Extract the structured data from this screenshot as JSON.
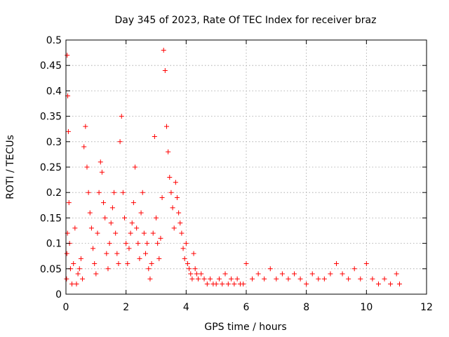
{
  "chart_data": {
    "type": "scatter",
    "title": "Day 345 of 2023, Rate Of TEC Index for receiver braz",
    "xlabel": "GPS time / hours",
    "ylabel": "ROTI / TECUs",
    "xlim": [
      0,
      12
    ],
    "ylim": [
      0,
      0.5
    ],
    "xticks": [
      0,
      2,
      4,
      6,
      8,
      10,
      12
    ],
    "yticks": [
      0,
      0.05,
      0.1,
      0.15,
      0.2,
      0.25,
      0.3,
      0.35,
      0.4,
      0.45,
      0.5
    ],
    "grid": true,
    "marker": "plus",
    "color": "#ff0000",
    "series": [
      {
        "x": [
          0.02,
          0.04,
          0.06,
          0.08,
          0.1,
          0.05,
          0.03,
          0.12,
          0.15,
          0.2,
          0.25,
          0.3,
          0.35,
          0.4,
          0.45,
          0.5,
          0.55,
          0.6,
          0.65,
          0.7,
          0.75,
          0.8,
          0.85,
          0.9,
          0.95,
          1.0,
          1.05,
          1.1,
          1.15,
          1.2,
          1.25,
          1.3,
          1.35,
          1.4,
          1.45,
          1.5,
          1.55,
          1.6,
          1.65,
          1.7,
          1.75,
          1.8,
          1.85,
          1.9,
          1.95,
          2.0,
          2.05,
          2.1,
          2.15,
          2.2,
          2.25,
          2.3,
          2.35,
          2.4,
          2.45,
          2.5,
          2.55,
          2.6,
          2.65,
          2.7,
          2.75,
          2.8,
          2.85,
          2.9,
          2.95,
          3.0,
          3.05,
          3.1,
          3.15,
          3.2,
          3.25,
          3.3,
          3.35,
          3.4,
          3.45,
          3.5,
          3.55,
          3.6,
          3.65,
          3.7,
          3.75,
          3.8,
          3.85,
          3.9,
          3.95,
          4.0,
          4.05,
          4.1,
          4.15,
          4.2,
          4.25,
          4.3,
          4.35,
          4.4,
          4.5,
          4.6,
          4.7,
          4.8,
          4.9,
          5.0,
          5.1,
          5.2,
          5.3,
          5.4,
          5.5,
          5.6,
          5.7,
          5.8,
          5.9,
          6.0,
          6.2,
          6.4,
          6.6,
          6.8,
          7.0,
          7.2,
          7.4,
          7.6,
          7.8,
          8.0,
          8.2,
          8.4,
          8.6,
          8.8,
          9.0,
          9.2,
          9.4,
          9.6,
          9.8,
          10.0,
          10.2,
          10.4,
          10.6,
          10.8,
          11.0,
          11.1
        ],
        "y": [
          0.03,
          0.47,
          0.39,
          0.32,
          0.18,
          0.12,
          0.08,
          0.1,
          0.05,
          0.02,
          0.06,
          0.13,
          0.02,
          0.04,
          0.05,
          0.07,
          0.03,
          0.29,
          0.33,
          0.25,
          0.2,
          0.16,
          0.13,
          0.09,
          0.06,
          0.04,
          0.12,
          0.2,
          0.26,
          0.24,
          0.18,
          0.15,
          0.08,
          0.05,
          0.1,
          0.14,
          0.17,
          0.2,
          0.12,
          0.08,
          0.06,
          0.3,
          0.35,
          0.2,
          0.15,
          0.1,
          0.06,
          0.09,
          0.12,
          0.14,
          0.18,
          0.25,
          0.13,
          0.1,
          0.07,
          0.16,
          0.2,
          0.12,
          0.08,
          0.1,
          0.05,
          0.03,
          0.06,
          0.12,
          0.31,
          0.15,
          0.1,
          0.07,
          0.11,
          0.19,
          0.48,
          0.44,
          0.33,
          0.28,
          0.23,
          0.2,
          0.17,
          0.13,
          0.22,
          0.19,
          0.16,
          0.14,
          0.12,
          0.09,
          0.07,
          0.1,
          0.06,
          0.05,
          0.04,
          0.03,
          0.08,
          0.05,
          0.04,
          0.03,
          0.04,
          0.03,
          0.02,
          0.03,
          0.02,
          0.02,
          0.03,
          0.02,
          0.04,
          0.02,
          0.03,
          0.02,
          0.03,
          0.02,
          0.02,
          0.06,
          0.03,
          0.04,
          0.03,
          0.05,
          0.03,
          0.04,
          0.03,
          0.04,
          0.03,
          0.02,
          0.04,
          0.03,
          0.03,
          0.04,
          0.06,
          0.04,
          0.03,
          0.05,
          0.03,
          0.06,
          0.03,
          0.02,
          0.03,
          0.02,
          0.04,
          0.02
        ]
      }
    ]
  }
}
